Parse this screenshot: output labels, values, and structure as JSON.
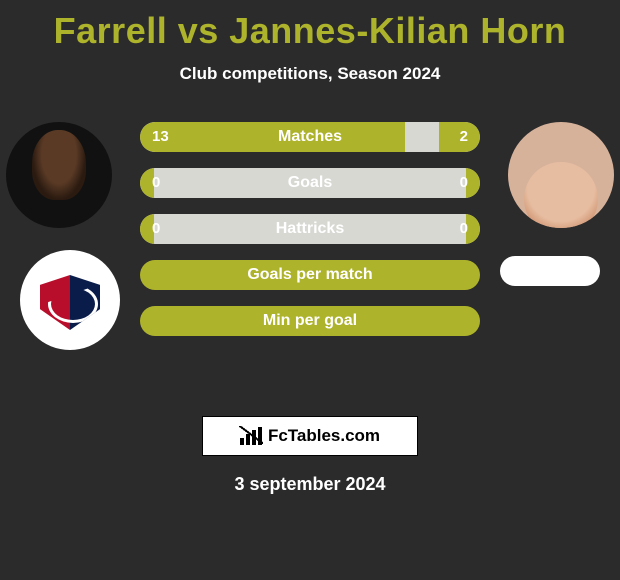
{
  "title": "Farrell vs Jannes-Kilian Horn",
  "subtitle": "Club competitions, Season 2024",
  "brand": "FcTables.com",
  "date": "3 september 2024",
  "colors": {
    "accent": "#aeb32c",
    "bar_track": "#d8d8d3",
    "background": "#2b2b2b",
    "text": "#ffffff"
  },
  "players": {
    "left": {
      "name": "Farrell"
    },
    "right": {
      "name": "Jannes-Kilian Horn"
    }
  },
  "rows": [
    {
      "label": "Matches",
      "left": "13",
      "right": "2",
      "left_pct": 78,
      "right_pct": 12,
      "show_values": true,
      "full": false
    },
    {
      "label": "Goals",
      "left": "0",
      "right": "0",
      "left_pct": 4,
      "right_pct": 4,
      "show_values": true,
      "full": false
    },
    {
      "label": "Hattricks",
      "left": "0",
      "right": "0",
      "left_pct": 4,
      "right_pct": 4,
      "show_values": true,
      "full": false
    },
    {
      "label": "Goals per match",
      "left": "",
      "right": "",
      "left_pct": 0,
      "right_pct": 0,
      "show_values": false,
      "full": true
    },
    {
      "label": "Min per goal",
      "left": "",
      "right": "",
      "left_pct": 0,
      "right_pct": 0,
      "show_values": false,
      "full": true
    }
  ]
}
